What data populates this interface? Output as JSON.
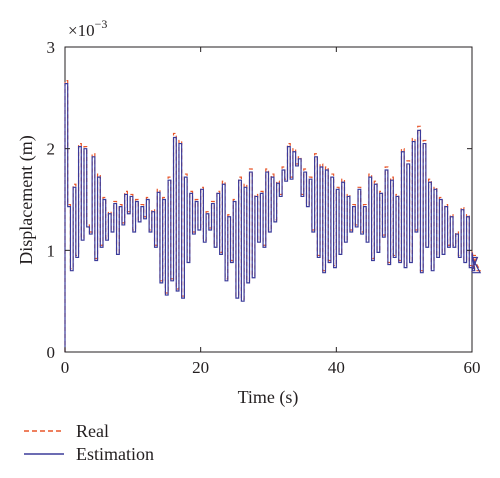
{
  "colors": {
    "real": "#e8562a",
    "estimation": "#3b3b9a",
    "axis": "#231f20"
  },
  "chart_data": {
    "type": "line",
    "xlabel": "Time (s)",
    "ylabel": "Displacement (m)",
    "y_multiplier_label": "×10",
    "y_multiplier_exponent": "−3",
    "xlim": [
      0,
      60
    ],
    "ylim": [
      0,
      3
    ],
    "x_ticks": [
      0,
      20,
      40,
      60
    ],
    "x_tick_labels": [
      "0",
      "20",
      "40",
      "60"
    ],
    "y_ticks": [
      0,
      1,
      2,
      3
    ],
    "y_tick_labels": [
      "0",
      "1",
      "2",
      "3"
    ],
    "grid": false,
    "legend_position": "below-left",
    "step_seconds": 0.4,
    "series": [
      {
        "name": "Real",
        "style": "dashed",
        "y_unit_scale": 0.001,
        "x_start": 0,
        "x_step": 0.4,
        "values": [
          2.67,
          1.45,
          0.82,
          1.65,
          0.95,
          2.05,
          1.12,
          2.02,
          1.25,
          1.18,
          1.95,
          0.92,
          1.75,
          1.05,
          1.52,
          1.12,
          1.38,
          1.2,
          1.48,
          0.98,
          1.45,
          1.27,
          1.58,
          1.38,
          1.55,
          1.2,
          1.5,
          1.3,
          1.45,
          1.33,
          1.52,
          1.2,
          1.4,
          1.05,
          1.6,
          0.7,
          1.52,
          0.58,
          1.72,
          0.72,
          2.15,
          0.62,
          2.08,
          0.55,
          1.75,
          0.9,
          1.58,
          1.18,
          1.5,
          1.22,
          1.62,
          1.1,
          1.38,
          1.22,
          1.48,
          1.05,
          1.58,
          0.98,
          1.68,
          0.72,
          1.35,
          0.9,
          1.5,
          0.55,
          1.72,
          0.52,
          1.65,
          0.7,
          1.8,
          0.75,
          1.55,
          1.1,
          1.58,
          1.05,
          1.8,
          1.2,
          1.75,
          1.3,
          1.68,
          1.55,
          1.82,
          1.7,
          2.05,
          1.72,
          2.0,
          1.85,
          1.92,
          1.55,
          1.8,
          1.45,
          1.72,
          1.2,
          1.95,
          0.95,
          1.85,
          0.8,
          1.82,
          0.9,
          1.75,
          0.85,
          1.62,
          0.98,
          1.7,
          1.1,
          1.55,
          1.2,
          1.45,
          1.25,
          1.62,
          1.18,
          1.45,
          1.1,
          1.75,
          0.92,
          1.68,
          1.0,
          1.58,
          1.15,
          1.82,
          0.88,
          1.72,
          0.95,
          1.55,
          0.9,
          2.0,
          0.85,
          1.88,
          0.9,
          2.1,
          1.2,
          2.22,
          0.8,
          2.08,
          1.05,
          1.7,
          0.82,
          1.62,
          0.95,
          1.52,
          0.98,
          1.45,
          1.05,
          1.35,
          1.05,
          1.18,
          0.95,
          1.42,
          0.9,
          1.35,
          0.85,
          1.0,
          0.82,
          0.95,
          0.8
        ]
      },
      {
        "name": "Estimation",
        "style": "solid",
        "y_unit_scale": 0.001,
        "x_start": 0,
        "x_step": 0.4,
        "values": [
          2.64,
          1.43,
          0.8,
          1.62,
          0.93,
          2.02,
          1.1,
          2.0,
          1.23,
          1.16,
          1.92,
          0.9,
          1.72,
          1.03,
          1.5,
          1.1,
          1.36,
          1.18,
          1.46,
          0.96,
          1.43,
          1.25,
          1.55,
          1.36,
          1.53,
          1.18,
          1.48,
          1.28,
          1.43,
          1.31,
          1.5,
          1.18,
          1.38,
          1.03,
          1.57,
          0.68,
          1.5,
          0.56,
          1.69,
          0.7,
          2.11,
          0.6,
          2.05,
          0.53,
          1.72,
          0.88,
          1.56,
          1.16,
          1.48,
          1.2,
          1.6,
          1.08,
          1.36,
          1.2,
          1.46,
          1.03,
          1.56,
          0.96,
          1.65,
          0.7,
          1.33,
          0.88,
          1.48,
          0.53,
          1.69,
          0.5,
          1.62,
          0.68,
          1.77,
          0.73,
          1.53,
          1.08,
          1.56,
          1.03,
          1.77,
          1.18,
          1.72,
          1.28,
          1.66,
          1.53,
          1.79,
          1.68,
          2.02,
          1.7,
          1.97,
          1.83,
          1.9,
          1.53,
          1.77,
          1.43,
          1.7,
          1.18,
          1.92,
          0.93,
          1.82,
          0.78,
          1.79,
          0.88,
          1.72,
          0.83,
          1.6,
          0.96,
          1.67,
          1.08,
          1.53,
          1.18,
          1.43,
          1.23,
          1.6,
          1.16,
          1.43,
          1.08,
          1.72,
          0.9,
          1.65,
          0.98,
          1.56,
          1.13,
          1.79,
          0.86,
          1.69,
          0.93,
          1.53,
          0.88,
          1.97,
          0.83,
          1.85,
          0.88,
          2.07,
          1.18,
          2.18,
          0.78,
          2.05,
          1.03,
          1.67,
          0.8,
          1.6,
          0.93,
          1.5,
          0.96,
          1.43,
          1.03,
          1.33,
          1.03,
          1.16,
          0.93,
          1.4,
          0.88,
          1.33,
          0.83,
          0.98,
          0.8,
          0.93,
          0.78
        ]
      }
    ]
  }
}
